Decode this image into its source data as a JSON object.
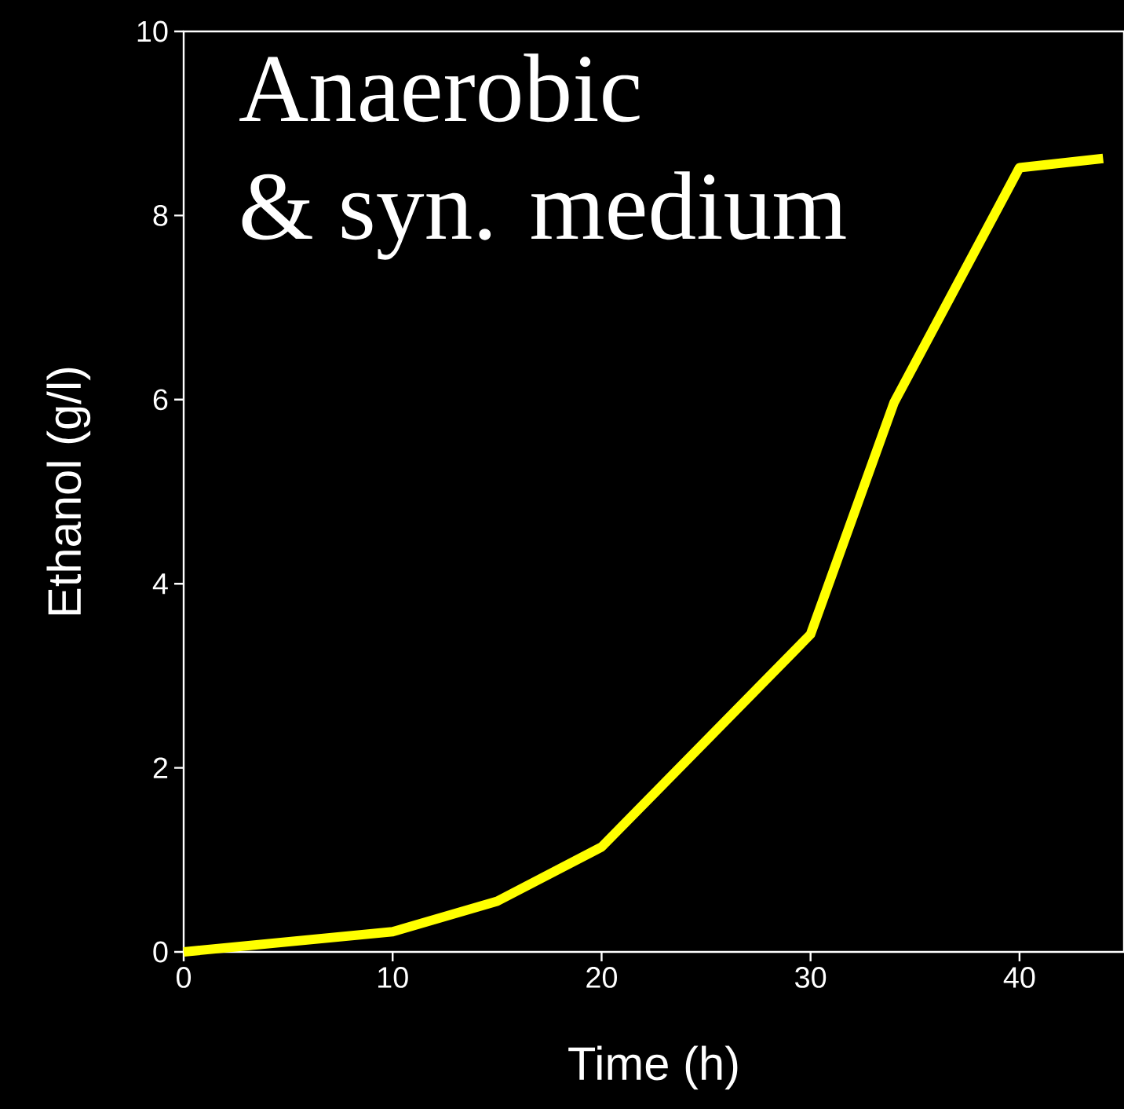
{
  "chart_data": {
    "type": "line",
    "xlabel": "Time (h)",
    "ylabel": "Ethanol (g/l)",
    "annotations": [
      "Anaerobic",
      "& syn. medium"
    ],
    "series": [
      {
        "color": "#ffff00",
        "x": [
          0,
          10,
          15,
          20,
          30,
          34,
          40,
          44
        ],
        "values": [
          0,
          0.22,
          0.55,
          1.14,
          3.45,
          5.97,
          8.52,
          8.62
        ]
      }
    ],
    "xlim": [
      0,
      45
    ],
    "ylim": [
      0,
      10
    ],
    "xticks": [
      0,
      10,
      20,
      30,
      40
    ],
    "yticks": [
      0,
      2,
      4,
      6,
      8,
      10
    ],
    "grid": false,
    "marker": "none",
    "line_style": "solid"
  }
}
